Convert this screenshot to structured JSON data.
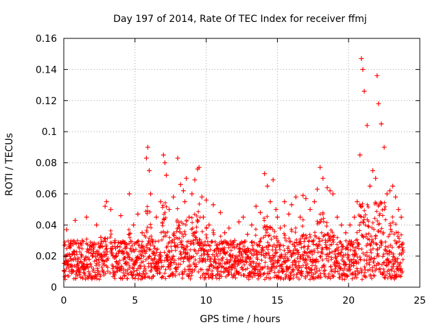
{
  "chart_data": {
    "type": "scatter",
    "title": "Day 197 of 2014, Rate Of TEC Index for receiver ffmj",
    "xlabel": "GPS time / hours",
    "ylabel": "ROTI / TECUs",
    "xlim": [
      0,
      25
    ],
    "ylim": [
      0,
      0.16
    ],
    "xticks": [
      0,
      5,
      10,
      15,
      20,
      25
    ],
    "yticks": [
      0,
      0.02,
      0.04,
      0.06,
      0.08,
      0.1,
      0.12,
      0.14,
      0.16
    ],
    "xtick_labels": [
      "0",
      "5",
      "10",
      "15",
      "20",
      "25"
    ],
    "ytick_labels": [
      "0",
      "0.02",
      "0.04",
      "0.06",
      "0.08",
      "0.1",
      "0.12",
      "0.14",
      "0.16"
    ],
    "grid": true,
    "marker": "+",
    "marker_color": "#ff0000",
    "series": [
      {
        "name": "ROTI",
        "x": [
          0.1,
          0.2,
          0.3,
          0.5,
          0.8,
          1.0,
          1.3,
          1.6,
          2.0,
          2.3,
          2.6,
          2.9,
          3.0,
          3.3,
          3.6,
          4.0,
          4.3,
          4.6,
          4.9,
          5.2,
          5.5,
          5.8,
          5.9,
          6.0,
          6.1,
          6.2,
          6.5,
          6.8,
          7.0,
          7.1,
          7.2,
          7.4,
          7.7,
          8.0,
          8.2,
          8.4,
          8.5,
          8.6,
          8.8,
          9.0,
          9.2,
          9.4,
          9.5,
          9.7,
          9.8,
          10.0,
          10.2,
          10.5,
          10.8,
          11.0,
          11.3,
          11.6,
          12.0,
          12.3,
          12.6,
          12.9,
          13.2,
          13.5,
          13.8,
          14.1,
          14.3,
          14.5,
          14.7,
          14.9,
          15.0,
          15.2,
          15.5,
          15.8,
          16.0,
          16.3,
          16.6,
          16.8,
          17.0,
          17.3,
          17.6,
          17.8,
          18.0,
          18.2,
          18.5,
          18.7,
          18.9,
          19.2,
          19.5,
          19.8,
          20.1,
          20.4,
          20.6,
          20.8,
          20.9,
          21.0,
          21.1,
          21.3,
          21.5,
          21.7,
          21.9,
          22.0,
          22.1,
          22.3,
          22.5,
          22.7,
          22.9,
          23.1,
          23.3,
          23.5,
          23.7
        ],
        "y": [
          0.02,
          0.037,
          0.015,
          0.028,
          0.043,
          0.018,
          0.03,
          0.045,
          0.02,
          0.04,
          0.032,
          0.052,
          0.055,
          0.05,
          0.03,
          0.046,
          0.025,
          0.06,
          0.04,
          0.047,
          0.035,
          0.083,
          0.09,
          0.075,
          0.06,
          0.03,
          0.045,
          0.055,
          0.085,
          0.08,
          0.072,
          0.05,
          0.058,
          0.083,
          0.066,
          0.062,
          0.055,
          0.07,
          0.045,
          0.06,
          0.069,
          0.076,
          0.077,
          0.058,
          0.045,
          0.056,
          0.04,
          0.053,
          0.025,
          0.048,
          0.035,
          0.038,
          0.03,
          0.042,
          0.045,
          0.034,
          0.04,
          0.052,
          0.048,
          0.073,
          0.065,
          0.055,
          0.069,
          0.05,
          0.045,
          0.038,
          0.055,
          0.047,
          0.053,
          0.058,
          0.045,
          0.059,
          0.057,
          0.05,
          0.055,
          0.063,
          0.077,
          0.07,
          0.064,
          0.062,
          0.06,
          0.045,
          0.04,
          0.035,
          0.04,
          0.045,
          0.055,
          0.085,
          0.147,
          0.14,
          0.126,
          0.104,
          0.065,
          0.075,
          0.07,
          0.136,
          0.118,
          0.105,
          0.09,
          0.06,
          0.062,
          0.065,
          0.058,
          0.05,
          0.045
        ]
      }
    ]
  }
}
